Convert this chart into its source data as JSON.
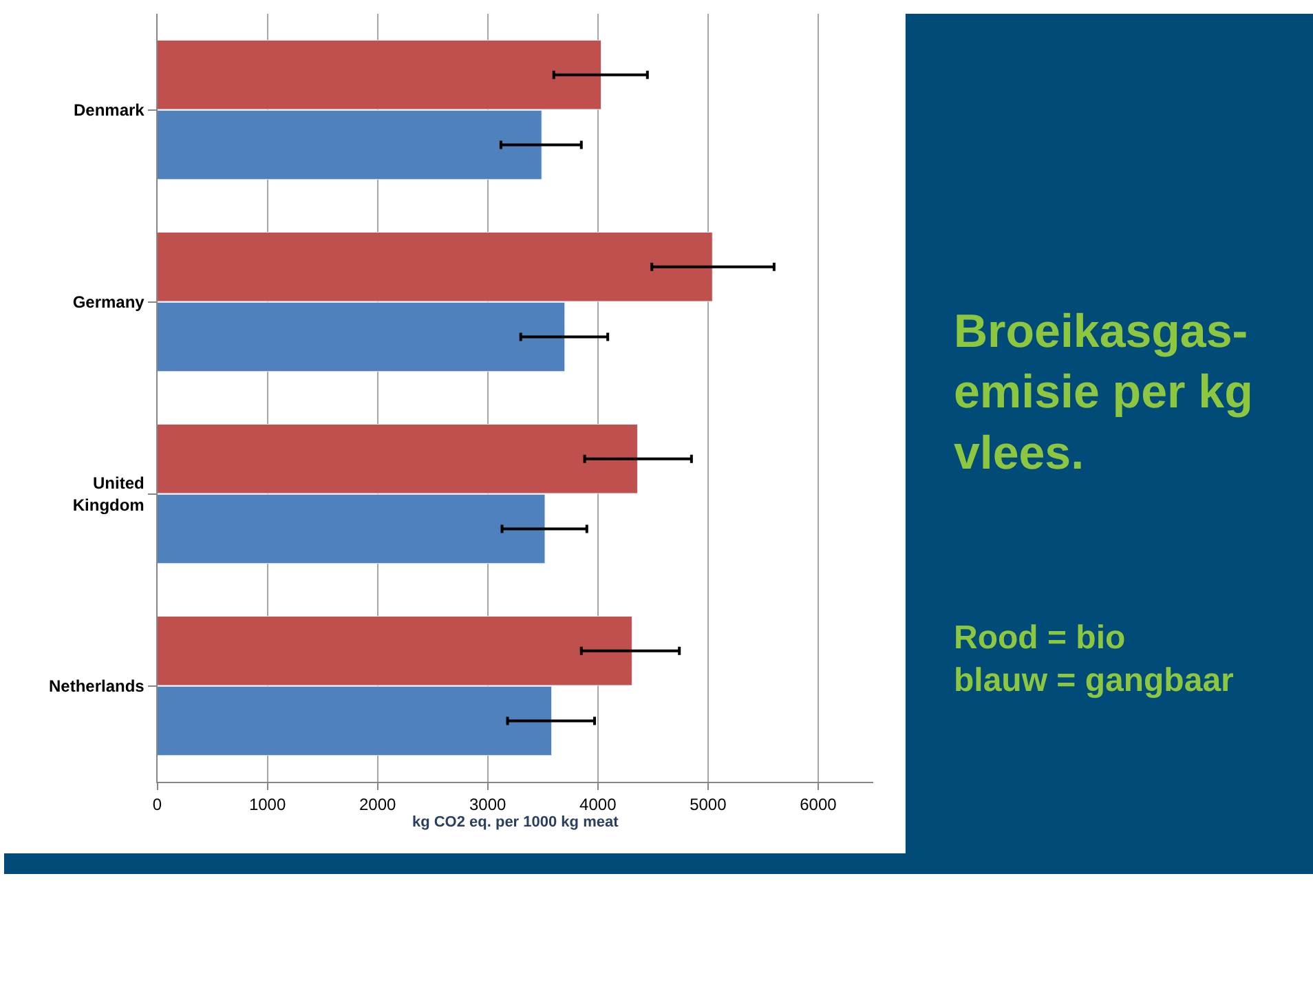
{
  "chart_data": {
    "type": "bar",
    "orientation": "horizontal",
    "title": "Broeikasgas-\nemisie per kg\nvlees.",
    "categories": [
      "Denmark",
      "Germany",
      "United\nKingdom",
      "Netherlands"
    ],
    "series": [
      {
        "color": "#c0504d",
        "values": [
          4030,
          5040,
          4360,
          4310
        ],
        "errors": [
          [
            3600,
            4450
          ],
          [
            4490,
            5600
          ],
          [
            3880,
            4850
          ],
          [
            3850,
            4740
          ]
        ]
      },
      {
        "color": "#4f81bd",
        "values": [
          3490,
          3700,
          3520,
          3580
        ],
        "errors": [
          [
            3120,
            3850
          ],
          [
            3300,
            4090
          ],
          [
            3130,
            3900
          ],
          [
            3180,
            3970
          ]
        ]
      }
    ],
    "xlabel": "kg CO2 eq. per 1000 kg meat",
    "xlim": [
      0,
      6500
    ],
    "xticks": [
      0,
      1000,
      2000,
      3000,
      4000,
      5000,
      6000
    ],
    "grid": "x",
    "legend": false,
    "annotations": [
      "Rood = bio\nblauw = gangbaar"
    ]
  }
}
